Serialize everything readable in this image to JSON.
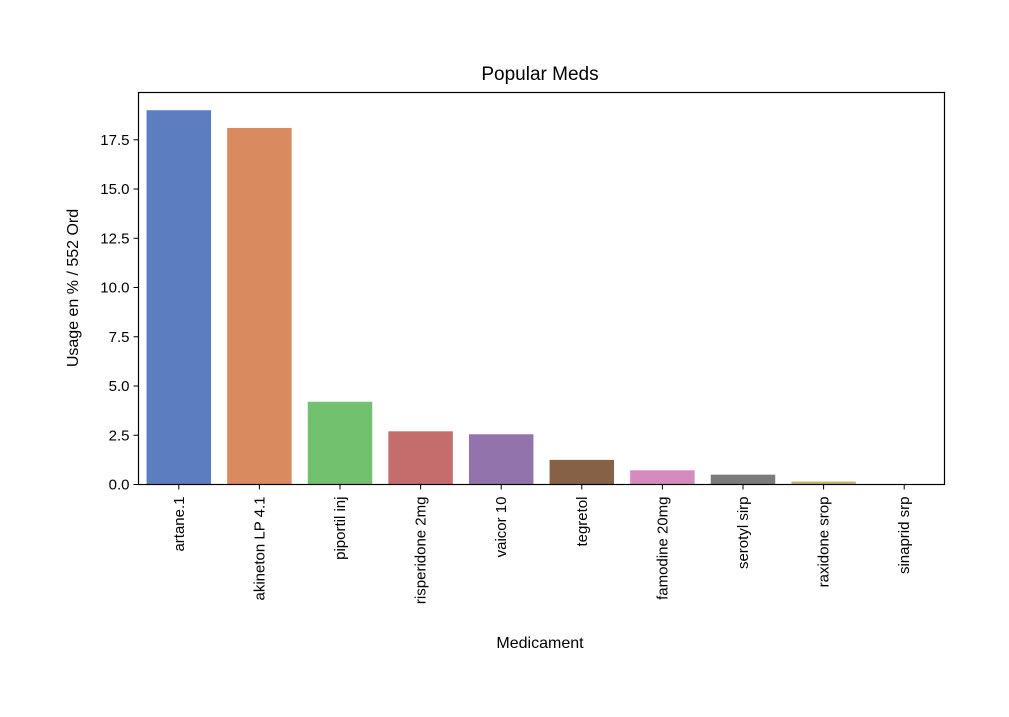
{
  "chart_data": {
    "type": "bar",
    "title": "Popular Meds",
    "xlabel": "Medicament",
    "ylabel": "Usage en % / 552 Ord",
    "categories": [
      "artane.1",
      "akineton LP 4.1",
      "piportil inj",
      "risperidone 2mg",
      "vaicor 10",
      "tegretol",
      "famodine 20mg",
      "serotyl sirp",
      "raxidone srop",
      "sinaprid srp"
    ],
    "values": [
      19.0,
      18.1,
      4.2,
      2.7,
      2.55,
      1.25,
      0.72,
      0.5,
      0.15,
      0.0
    ],
    "colors": [
      "#5b7ec1",
      "#d98a5f",
      "#72c16f",
      "#c56c6c",
      "#9373ab",
      "#866145",
      "#d68bc0",
      "#7b7b7b",
      "#c5b36e",
      "#7cc4d8"
    ],
    "ylim": [
      0,
      19.9
    ],
    "yticks": [
      "0.0",
      "2.5",
      "5.0",
      "7.5",
      "10.0",
      "12.5",
      "15.0",
      "17.5"
    ],
    "ytick_values": [
      0,
      2.5,
      5.0,
      7.5,
      10.0,
      12.5,
      15.0,
      17.5
    ],
    "grid": false,
    "legend": "none"
  }
}
